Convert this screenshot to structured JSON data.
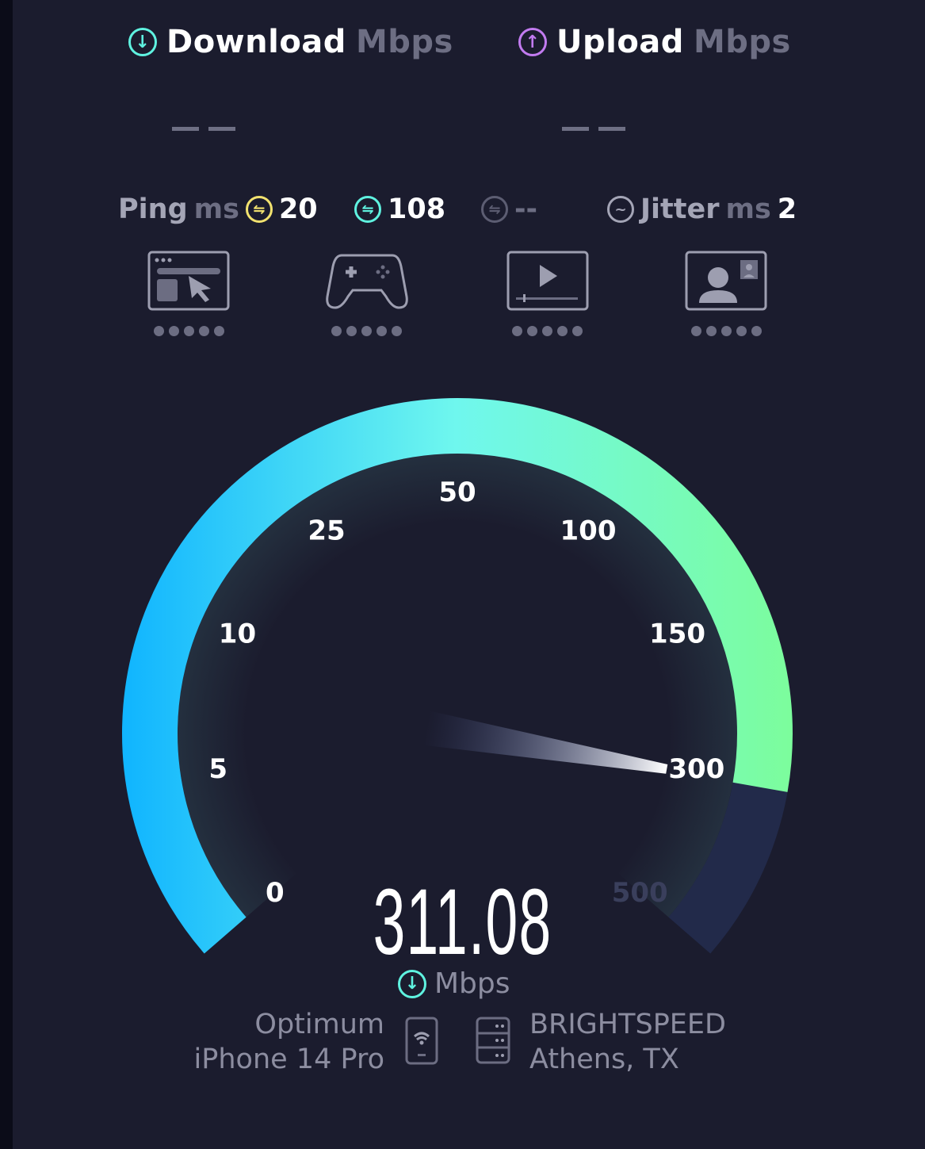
{
  "download": {
    "label": "Download",
    "unit": "Mbps",
    "value": "— —",
    "icon": "download-arrow-icon",
    "color": "#5ff2e0"
  },
  "upload": {
    "label": "Upload",
    "unit": "Mbps",
    "value": "— —",
    "icon": "upload-arrow-icon",
    "color": "#c27bf0"
  },
  "ping": {
    "label": "Ping",
    "unit": "ms",
    "idle": "20",
    "download": "108",
    "upload": "--",
    "idle_color": "#f2e26f",
    "download_color": "#5ff2e0",
    "upload_color": "#6c6d82"
  },
  "jitter": {
    "label": "Jitter",
    "unit": "ms",
    "value": "2"
  },
  "activities": [
    {
      "icon": "web-browsing-icon",
      "rating_dots": 5
    },
    {
      "icon": "gaming-controller-icon",
      "rating_dots": 5
    },
    {
      "icon": "video-streaming-icon",
      "rating_dots": 5
    },
    {
      "icon": "video-call-icon",
      "rating_dots": 5
    }
  ],
  "gauge": {
    "ticks": [
      "0",
      "5",
      "10",
      "25",
      "50",
      "100",
      "150",
      "300",
      "500"
    ],
    "tick_values": [
      0,
      5,
      10,
      25,
      50,
      100,
      150,
      300,
      500
    ],
    "current_value": 311.08,
    "colors": {
      "start": "#0fb4ff",
      "mid": "#6ff7ee",
      "end": "#7cfd9c",
      "track": "#222a4a"
    }
  },
  "result": {
    "value": "311.08",
    "unit": "Mbps"
  },
  "client": {
    "isp": "Optimum",
    "device": "iPhone 14 Pro"
  },
  "server": {
    "name": "BRIGHTSPEED",
    "location": "Athens, TX"
  }
}
